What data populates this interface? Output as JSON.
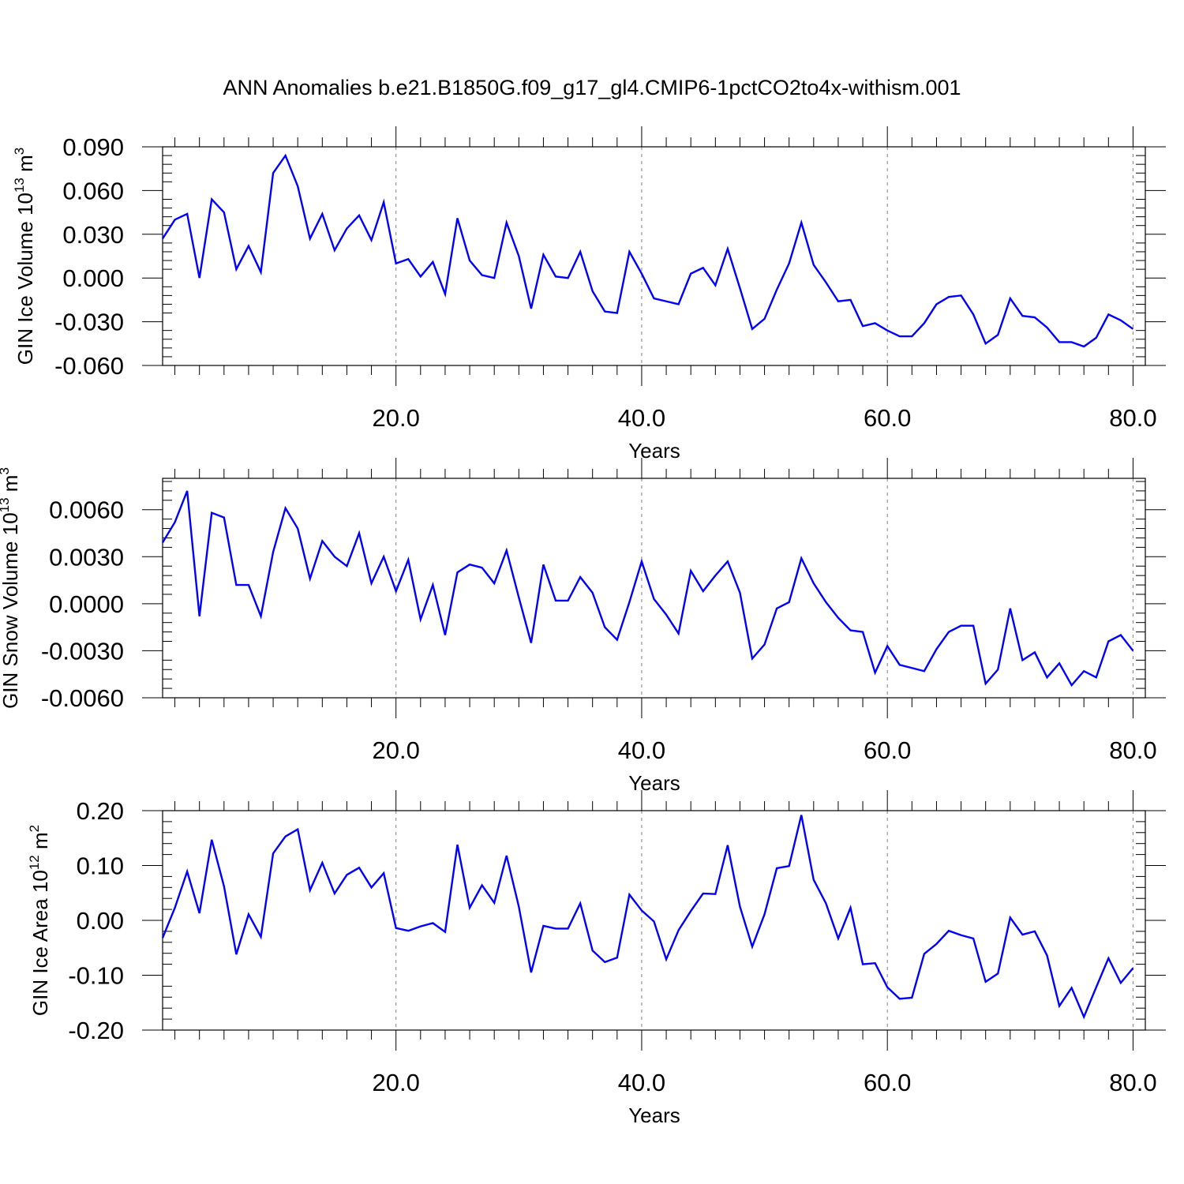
{
  "title": "ANN Anomalies b.e21.B1850G.f09_g17_gl4.CMIP6-1pctCO2to4x-withism.001",
  "colors": {
    "line": "#0000ff",
    "axis": "#000000",
    "grid": "#808080"
  },
  "chart_data": [
    {
      "type": "line",
      "ylabel": {
        "text": "GIN Ice Volume 10",
        "exponent": "13",
        "unit": "m",
        "unit_exponent": "3"
      },
      "xlabel": "Years",
      "xlim": [
        1,
        81
      ],
      "ylim": [
        -0.06,
        0.09
      ],
      "yticks": [
        "0.090",
        "0.060",
        "0.030",
        "0.000",
        "-0.030",
        "-0.060"
      ],
      "ytick_values": [
        0.09,
        0.06,
        0.03,
        0.0,
        -0.03,
        -0.06
      ],
      "xticks": [
        "20.0",
        "40.0",
        "60.0",
        "80.0"
      ],
      "xtick_values": [
        20,
        40,
        60,
        80
      ],
      "grid": "vertical dashed at major x ticks",
      "series": [
        {
          "x_start": 1,
          "values": [
            0.027,
            0.04,
            0.044,
            0.0,
            0.054,
            0.045,
            0.006,
            0.022,
            0.004,
            0.072,
            0.084,
            0.063,
            0.027,
            0.044,
            0.019,
            0.034,
            0.043,
            0.026,
            0.052,
            0.01,
            0.013,
            0.001,
            0.011,
            -0.011,
            0.041,
            0.012,
            0.002,
            0.0,
            0.038,
            0.015,
            -0.021,
            0.016,
            0.001,
            0.0,
            0.018,
            -0.009,
            -0.023,
            -0.024,
            0.018,
            0.003,
            -0.014,
            -0.016,
            -0.018,
            0.003,
            0.007,
            -0.005,
            0.02,
            -0.007,
            -0.035,
            -0.028,
            -0.008,
            0.01,
            0.038,
            0.009,
            -0.003,
            -0.016,
            -0.015,
            -0.033,
            -0.031,
            -0.036,
            -0.04,
            -0.04,
            -0.031,
            -0.018,
            -0.013,
            -0.012,
            -0.025,
            -0.045,
            -0.039,
            -0.014,
            -0.026,
            -0.027,
            -0.034,
            -0.044,
            -0.044,
            -0.047,
            -0.041,
            -0.025,
            -0.029,
            -0.035
          ]
        }
      ]
    },
    {
      "type": "line",
      "ylabel": {
        "text": "GIN Snow Volume 10",
        "exponent": "13",
        "unit": "m",
        "unit_exponent": "3"
      },
      "xlabel": "Years",
      "xlim": [
        1,
        81
      ],
      "ylim": [
        -0.006,
        0.008
      ],
      "yticks": [
        "0.0060",
        "0.0030",
        "0.0000",
        "-0.0030",
        "-0.0060"
      ],
      "ytick_values": [
        0.006,
        0.003,
        0.0,
        -0.003,
        -0.006
      ],
      "xticks": [
        "20.0",
        "40.0",
        "60.0",
        "80.0"
      ],
      "xtick_values": [
        20,
        40,
        60,
        80
      ],
      "grid": "vertical dashed at major x ticks",
      "series": [
        {
          "x_start": 1,
          "values": [
            0.0039,
            0.0052,
            0.0072,
            -0.0008,
            0.0058,
            0.0055,
            0.0012,
            0.0012,
            -0.0008,
            0.0033,
            0.0061,
            0.0048,
            0.0016,
            0.004,
            0.003,
            0.0024,
            0.0045,
            0.0013,
            0.003,
            0.0008,
            0.0028,
            -0.001,
            0.0012,
            -0.002,
            0.002,
            0.0025,
            0.0023,
            0.0013,
            0.0034,
            0.0004,
            -0.0025,
            0.0025,
            0.0002,
            0.0002,
            0.0017,
            0.0007,
            -0.0015,
            -0.0023,
            0.0001,
            0.0027,
            0.0003,
            -0.0007,
            -0.0019,
            0.0021,
            0.0008,
            0.0018,
            0.0027,
            0.0007,
            -0.0035,
            -0.0026,
            -0.0003,
            0.0001,
            0.0029,
            0.0013,
            0.0001,
            -0.0009,
            -0.0017,
            -0.0018,
            -0.0044,
            -0.0027,
            -0.0039,
            -0.0041,
            -0.0043,
            -0.0029,
            -0.0018,
            -0.0014,
            -0.0014,
            -0.0051,
            -0.0042,
            -0.0003,
            -0.0036,
            -0.0031,
            -0.0047,
            -0.0038,
            -0.0052,
            -0.0043,
            -0.0047,
            -0.0024,
            -0.002,
            -0.003
          ]
        }
      ]
    },
    {
      "type": "line",
      "ylabel": {
        "text": "GIN Ice Area 10",
        "exponent": "12",
        "unit": "m",
        "unit_exponent": "2"
      },
      "xlabel": "Years",
      "xlim": [
        1,
        81
      ],
      "ylim": [
        -0.2,
        0.2
      ],
      "yticks": [
        "0.20",
        "0.10",
        "0.00",
        "-0.10",
        "-0.20"
      ],
      "ytick_values": [
        0.2,
        0.1,
        0.0,
        -0.1,
        -0.2
      ],
      "xticks": [
        "20.0",
        "40.0",
        "60.0",
        "80.0"
      ],
      "xtick_values": [
        20,
        40,
        60,
        80
      ],
      "grid": "vertical dashed at major x ticks",
      "series": [
        {
          "x_start": 1,
          "values": [
            -0.032,
            0.023,
            0.089,
            0.013,
            0.147,
            0.062,
            -0.062,
            0.011,
            -0.03,
            0.122,
            0.153,
            0.166,
            0.055,
            0.105,
            0.049,
            0.083,
            0.096,
            0.06,
            0.086,
            -0.014,
            -0.019,
            -0.011,
            -0.005,
            -0.021,
            0.138,
            0.023,
            0.064,
            0.032,
            0.118,
            0.025,
            -0.095,
            -0.01,
            -0.015,
            -0.015,
            0.031,
            -0.055,
            -0.076,
            -0.068,
            0.047,
            0.018,
            -0.002,
            -0.071,
            -0.018,
            0.017,
            0.049,
            0.048,
            0.137,
            0.025,
            -0.048,
            0.011,
            0.095,
            0.099,
            0.192,
            0.074,
            0.031,
            -0.033,
            0.023,
            -0.08,
            -0.078,
            -0.122,
            -0.143,
            -0.141,
            -0.061,
            -0.043,
            -0.019,
            -0.027,
            -0.033,
            -0.112,
            -0.097,
            0.005,
            -0.026,
            -0.02,
            -0.064,
            -0.156,
            -0.123,
            -0.176,
            -0.122,
            -0.069,
            -0.114,
            -0.087
          ]
        }
      ]
    }
  ]
}
